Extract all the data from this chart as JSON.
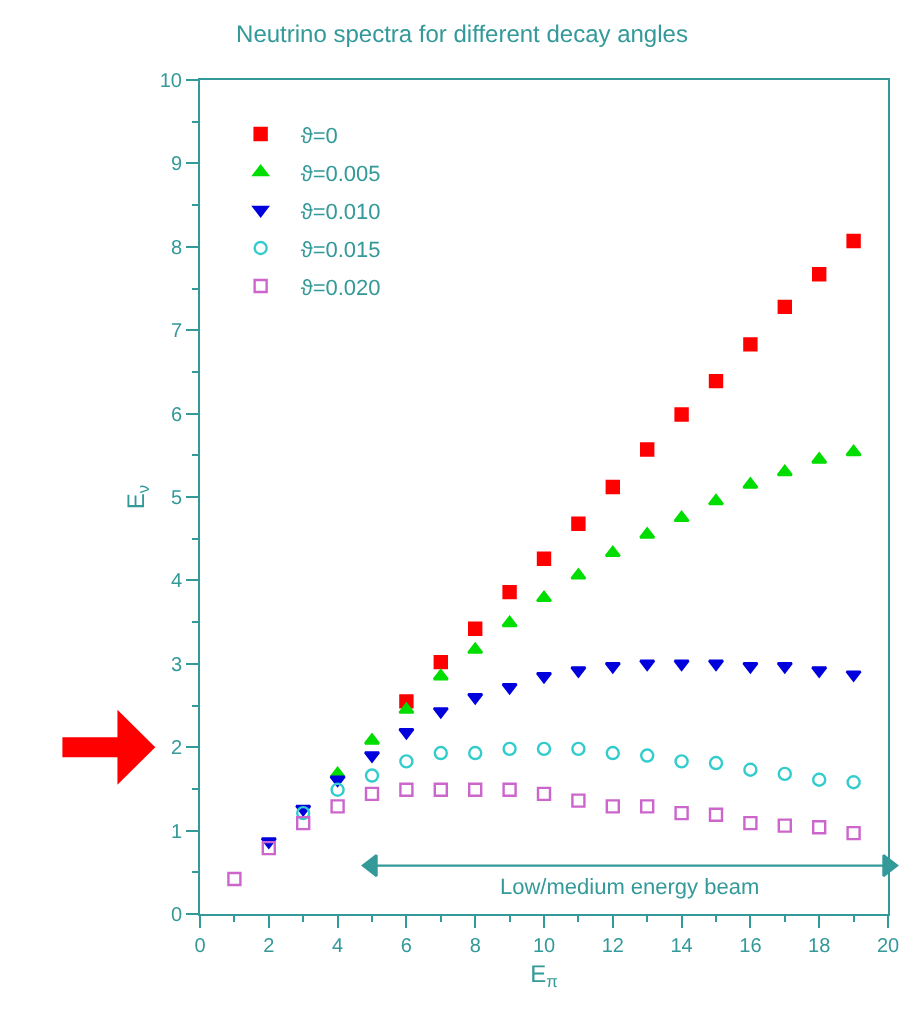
{
  "chart_data": {
    "type": "scatter",
    "title": "Neutrino spectra for different decay angles",
    "xlabel": "E$_{π}$",
    "ylabel": "E$_{ν}$",
    "x": [
      1,
      2,
      3,
      4,
      5,
      6,
      7,
      8,
      9,
      10,
      11,
      12,
      13,
      14,
      15,
      16,
      17,
      18,
      19
    ],
    "series": [
      {
        "name": "ϑ=0",
        "color": "#ff0000",
        "marker": "square",
        "values": [
          null,
          null,
          null,
          null,
          null,
          2.55,
          3.02,
          3.42,
          3.86,
          4.26,
          4.68,
          5.12,
          5.57,
          5.99,
          6.39,
          6.83,
          7.28,
          7.67,
          8.07
        ]
      },
      {
        "name": "ϑ=0.005",
        "color": "#00dd00",
        "marker": "triangle",
        "values": [
          null,
          null,
          null,
          1.68,
          2.08,
          2.45,
          2.85,
          3.17,
          3.49,
          3.79,
          4.06,
          4.33,
          4.55,
          4.75,
          4.95,
          5.15,
          5.3,
          5.45,
          5.54
        ]
      },
      {
        "name": "ϑ=0.010",
        "color": "#0000dd",
        "marker": "triangle",
        "values": [
          null,
          0.87,
          1.26,
          1.61,
          1.9,
          2.18,
          2.43,
          2.6,
          2.72,
          2.85,
          2.92,
          2.97,
          3.0,
          3.0,
          3.0,
          2.97,
          2.97,
          2.92,
          2.87
        ]
      },
      {
        "name": "ϑ=0.015",
        "color": "#33cccc",
        "marker": "circle",
        "values": [
          null,
          null,
          1.21,
          1.49,
          1.66,
          1.83,
          1.93,
          1.93,
          1.98,
          1.98,
          1.98,
          1.93,
          1.9,
          1.83,
          1.81,
          1.73,
          1.68,
          1.61,
          1.58
        ]
      },
      {
        "name": "ϑ=0.020",
        "color": "#cc66cc",
        "marker": "square",
        "values": [
          0.42,
          0.79,
          1.09,
          1.29,
          1.44,
          1.49,
          1.49,
          1.49,
          1.49,
          1.44,
          1.36,
          1.29,
          1.29,
          1.21,
          1.19,
          1.09,
          1.06,
          1.04,
          0.97
        ]
      },
      {
        "type": "line",
        "color": "#339999",
        "marker": "triangle",
        "x": [
          5,
          20
        ],
        "values": [
          0.58,
          0.58
        ]
      }
    ],
    "xlim": [
      0,
      20
    ],
    "xticks": [
      0,
      2,
      4,
      6,
      8,
      10,
      12,
      14,
      16,
      18,
      20
    ],
    "ylim": [
      0,
      10
    ],
    "yticks": [
      0,
      1,
      2,
      3,
      4,
      5,
      6,
      7,
      8,
      9,
      10
    ],
    "annotations": [
      "Low/medium energy beam"
    ],
    "legend": "top left"
  }
}
